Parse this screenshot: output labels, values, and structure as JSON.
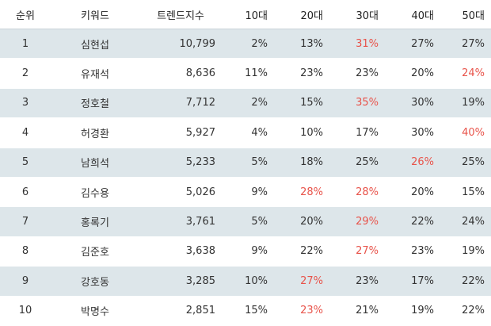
{
  "table": {
    "header": [
      "순위",
      "키워드",
      "트렌드지수",
      "10대",
      "20대",
      "30대",
      "40대",
      "50대"
    ],
    "rows": [
      [
        "1",
        "심현섭",
        "10,799",
        "2%",
        "13%",
        "31%",
        "27%",
        "27%"
      ],
      [
        "2",
        "유재석",
        "8,636",
        "11%",
        "23%",
        "23%",
        "20%",
        "24%"
      ],
      [
        "3",
        "정호철",
        "7,712",
        "2%",
        "15%",
        "35%",
        "30%",
        "19%"
      ],
      [
        "4",
        "허경환",
        "5,927",
        "4%",
        "10%",
        "17%",
        "30%",
        "40%"
      ],
      [
        "5",
        "남희석",
        "5,233",
        "5%",
        "18%",
        "25%",
        "26%",
        "25%"
      ],
      [
        "6",
        "김수용",
        "5,026",
        "9%",
        "28%",
        "28%",
        "20%",
        "15%"
      ],
      [
        "7",
        "홍록기",
        "3,761",
        "5%",
        "20%",
        "29%",
        "22%",
        "24%"
      ],
      [
        "8",
        "김준호",
        "3,638",
        "9%",
        "22%",
        "27%",
        "23%",
        "19%"
      ],
      [
        "9",
        "강호동",
        "3,285",
        "10%",
        "27%",
        "23%",
        "17%",
        "22%"
      ],
      [
        "10",
        "박명수",
        "2,851",
        "15%",
        "23%",
        "21%",
        "19%",
        "22%"
      ]
    ],
    "highlight": [
      [
        5
      ],
      [
        7
      ],
      [
        5
      ],
      [
        7
      ],
      [
        6
      ],
      [
        4,
        5
      ],
      [
        5
      ],
      [
        5
      ],
      [
        4
      ],
      [
        4
      ]
    ],
    "highlight_color": "#e8534a",
    "stripe_color": "#dde6ea"
  }
}
